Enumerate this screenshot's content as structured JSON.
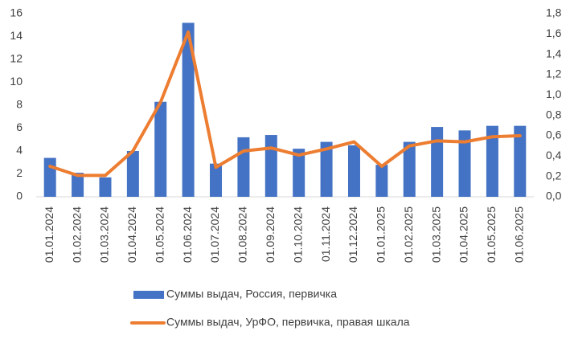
{
  "chart_data": {
    "type": "bar",
    "categories": [
      "01.01.2024",
      "01.02.2024",
      "01.03.2024",
      "01.04.2024",
      "01.05.2024",
      "01.06.2024",
      "01.07.2024",
      "01.08.2024",
      "01.09.2024",
      "01.10.2024",
      "01.11.2024",
      "01.12.2024",
      "01.01.2025",
      "01.02.2025",
      "01.03.2025",
      "01.04.2025",
      "01.05.2025",
      "01.06.2025"
    ],
    "series": [
      {
        "name": "Суммы выдач, Россия, первичка",
        "type": "bar",
        "color": "#4472c4",
        "values": [
          3.4,
          2.1,
          1.7,
          4.0,
          8.3,
          15.2,
          2.9,
          5.2,
          5.4,
          4.2,
          4.8,
          4.5,
          2.8,
          4.8,
          6.1,
          5.8,
          6.2,
          6.2
        ]
      },
      {
        "name": "Суммы выдач, УрФО, первичка, правая шкала",
        "type": "line",
        "axis": "y2",
        "color": "#ed7d31",
        "values": [
          0.3,
          0.21,
          0.21,
          0.45,
          0.93,
          1.62,
          0.29,
          0.45,
          0.48,
          0.41,
          0.47,
          0.54,
          0.3,
          0.5,
          0.55,
          0.54,
          0.59,
          0.6
        ]
      }
    ],
    "ylim": [
      0,
      16
    ],
    "yticks": [
      0,
      2,
      4,
      6,
      8,
      10,
      12,
      14,
      16
    ],
    "y2lim": [
      0,
      1.8
    ],
    "y2ticks": [
      {
        "value": 0,
        "label": "0,0"
      },
      {
        "value": 0.2,
        "label": "0,2"
      },
      {
        "value": 0.4,
        "label": "0,4"
      },
      {
        "value": 0.6,
        "label": "0,6"
      },
      {
        "value": 0.8,
        "label": "0,8"
      },
      {
        "value": 1.0,
        "label": "1,0"
      },
      {
        "value": 1.2,
        "label": "1,2"
      },
      {
        "value": 1.4,
        "label": "1,4"
      },
      {
        "value": 1.6,
        "label": "1,6"
      },
      {
        "value": 1.8,
        "label": "1,8"
      }
    ],
    "grid": false,
    "legend": "bottom"
  }
}
